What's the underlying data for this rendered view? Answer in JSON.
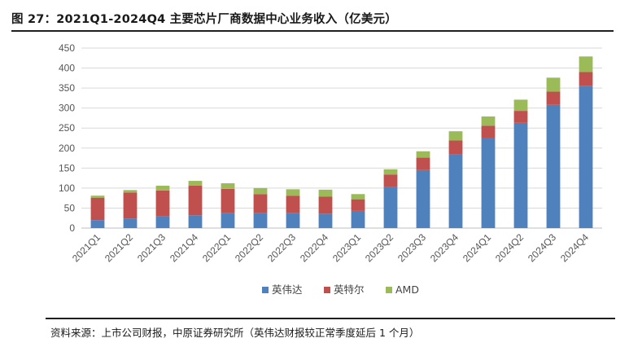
{
  "figure": {
    "title": "图 27：2021Q1-2024Q4 主要芯片厂商数据中心业务收入（亿美元）",
    "source": "资料来源：上市公司财报，中原证券研究所（英伟达财报较正常季度延后 1 个月）"
  },
  "chart_data": {
    "type": "stacked-bar",
    "title": "2021Q1-2024Q4 主要芯片厂商数据中心业务收入（亿美元）",
    "ylabel": "亿美元",
    "ylim": [
      0,
      450
    ],
    "yticks": [
      0,
      50,
      100,
      150,
      200,
      250,
      300,
      350,
      400,
      450
    ],
    "grid": true,
    "legend_position": "bottom",
    "categories": [
      "2021Q1",
      "2021Q2",
      "2021Q3",
      "2021Q4",
      "2022Q1",
      "2022Q2",
      "2022Q3",
      "2022Q4",
      "2023Q1",
      "2023Q2",
      "2023Q3",
      "2023Q4",
      "2024Q1",
      "2024Q2",
      "2024Q3",
      "2024Q4"
    ],
    "series": [
      {
        "name": "英伟达",
        "color": "#4f81bd",
        "values": [
          20,
          24,
          29,
          32,
          38,
          38,
          38,
          36,
          43,
          103,
          145,
          184,
          226,
          263,
          308,
          356
        ]
      },
      {
        "name": "英特尔",
        "color": "#c0504d",
        "values": [
          56,
          65,
          65,
          74,
          60,
          47,
          43,
          43,
          29,
          31,
          31,
          35,
          30,
          30,
          33,
          34
        ]
      },
      {
        "name": "AMD",
        "color": "#9bbb59",
        "values": [
          5,
          6,
          12,
          12,
          14,
          15,
          16,
          17,
          13,
          13,
          16,
          23,
          23,
          28,
          35,
          39
        ]
      }
    ]
  }
}
